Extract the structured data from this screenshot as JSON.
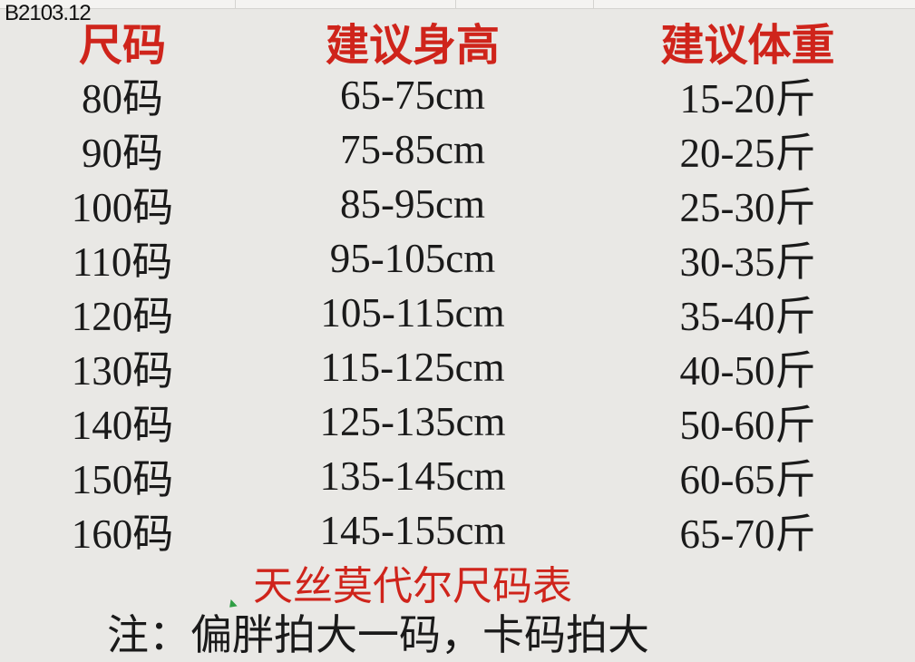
{
  "page": {
    "code_label": "B2103.12"
  },
  "colors": {
    "background": "#e9e8e5",
    "accent_red": "#cf241b",
    "text": "#1a1a1a",
    "green_mark": "#2f9e44"
  },
  "table": {
    "headers": [
      "尺码",
      "建议身高",
      "建议体重"
    ],
    "rows": [
      [
        "80码",
        "65-75cm",
        "15-20斤"
      ],
      [
        "90码",
        "75-85cm",
        "20-25斤"
      ],
      [
        "100码",
        "85-95cm",
        "25-30斤"
      ],
      [
        "110码",
        "95-105cm",
        "30-35斤"
      ],
      [
        "120码",
        "105-115cm",
        "35-40斤"
      ],
      [
        "130码",
        "115-125cm",
        "40-50斤"
      ],
      [
        "140码",
        "125-135cm",
        "50-60斤"
      ],
      [
        "150码",
        "135-145cm",
        "60-65斤"
      ],
      [
        "160码",
        "145-155cm",
        "65-70斤"
      ]
    ]
  },
  "subtitle": "天丝莫代尔尺码表",
  "note": "注：偏胖拍大一码，卡码拍大"
}
